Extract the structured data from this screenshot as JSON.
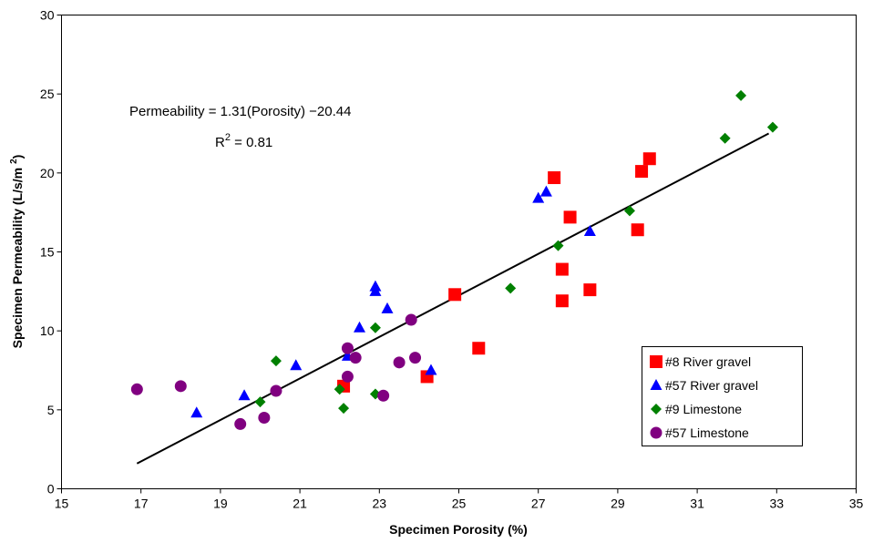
{
  "chart_data": {
    "type": "scatter",
    "xlabel": "Specimen Porosity (%)",
    "ylabel": "Specimen Permeability (L/s/m",
    "ylabel_sup": "2",
    "ylabel_close": ")",
    "xlim": [
      15,
      35
    ],
    "ylim": [
      0,
      30
    ],
    "xticks": [
      15,
      17,
      19,
      21,
      23,
      25,
      27,
      29,
      31,
      33,
      35
    ],
    "yticks": [
      0,
      5,
      10,
      15,
      20,
      25,
      30
    ],
    "grid": false,
    "legend_position": "bottom-right",
    "annotations": {
      "equation": "Permeability = 1.31(Porosity) −20.44",
      "r2_prefix": "R",
      "r2_sup": "2",
      "r2_suffix": " = 0.81"
    },
    "trendline": {
      "x": [
        16.9,
        32.8
      ],
      "y": [
        1.6,
        22.5
      ],
      "color": "#000000"
    },
    "series": [
      {
        "name": "#8 River gravel",
        "marker": "square",
        "color": "#ff0000",
        "points": [
          [
            22.1,
            6.5
          ],
          [
            24.2,
            7.1
          ],
          [
            24.9,
            12.3
          ],
          [
            25.5,
            8.9
          ],
          [
            27.4,
            19.7
          ],
          [
            27.6,
            11.9
          ],
          [
            27.6,
            13.9
          ],
          [
            27.8,
            17.2
          ],
          [
            28.3,
            12.6
          ],
          [
            29.5,
            16.4
          ],
          [
            29.6,
            20.1
          ],
          [
            29.8,
            20.9
          ]
        ]
      },
      {
        "name": "#57 River gravel",
        "marker": "triangle",
        "color": "#0000ff",
        "points": [
          [
            18.4,
            4.8
          ],
          [
            19.6,
            5.9
          ],
          [
            20.9,
            7.8
          ],
          [
            22.2,
            8.4
          ],
          [
            22.5,
            10.2
          ],
          [
            22.9,
            12.5
          ],
          [
            22.9,
            12.8
          ],
          [
            23.2,
            11.4
          ],
          [
            24.3,
            7.5
          ],
          [
            27.0,
            18.4
          ],
          [
            27.2,
            18.8
          ],
          [
            28.3,
            16.3
          ]
        ]
      },
      {
        "name": "#9 Limestone",
        "marker": "diamond",
        "color": "#008000",
        "points": [
          [
            20.0,
            5.5
          ],
          [
            20.4,
            8.1
          ],
          [
            22.0,
            6.3
          ],
          [
            22.1,
            5.1
          ],
          [
            22.9,
            10.2
          ],
          [
            22.9,
            6.0
          ],
          [
            26.3,
            12.7
          ],
          [
            27.5,
            15.4
          ],
          [
            29.3,
            17.6
          ],
          [
            31.7,
            22.2
          ],
          [
            32.1,
            24.9
          ],
          [
            32.9,
            22.9
          ]
        ]
      },
      {
        "name": "#57 Limestone",
        "marker": "circle",
        "color": "#800080",
        "points": [
          [
            16.9,
            6.3
          ],
          [
            18.0,
            6.5
          ],
          [
            19.5,
            4.1
          ],
          [
            20.1,
            4.5
          ],
          [
            20.4,
            6.2
          ],
          [
            22.2,
            7.1
          ],
          [
            22.2,
            8.9
          ],
          [
            22.4,
            8.3
          ],
          [
            23.1,
            5.9
          ],
          [
            23.5,
            8.0
          ],
          [
            23.8,
            10.7
          ],
          [
            23.9,
            8.3
          ]
        ]
      }
    ]
  }
}
